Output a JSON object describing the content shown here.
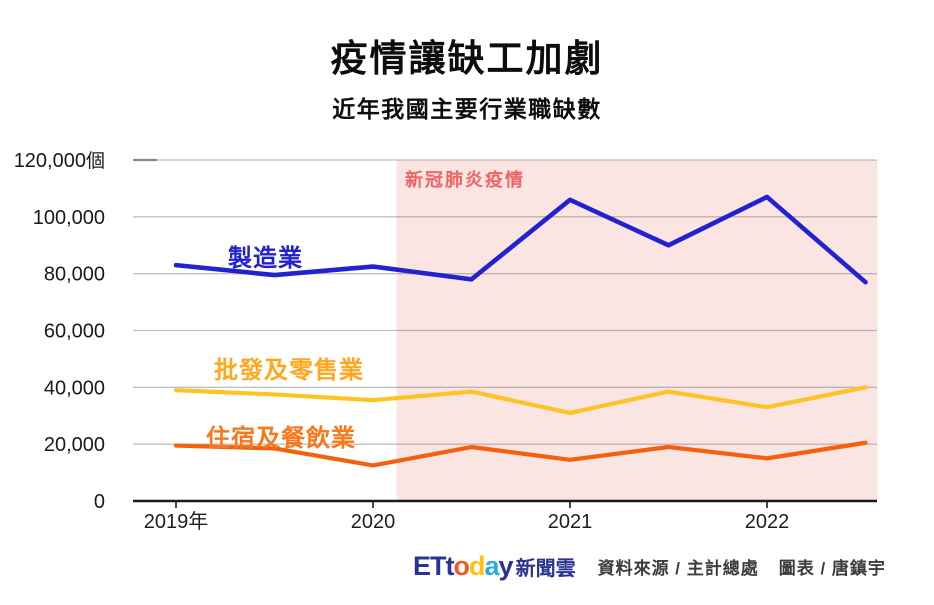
{
  "header": {
    "title": "疫情讓缺工加劇",
    "subtitle": "近年我國主要行業職缺數"
  },
  "chart_data": {
    "type": "line",
    "title": "疫情讓缺工加劇",
    "subtitle": "近年我國主要行業職缺數",
    "unit": "個",
    "x": [
      2019,
      2019.5,
      2020,
      2020.5,
      2021,
      2021.5,
      2022,
      2022.5
    ],
    "x_tick_values": [
      2019,
      2020,
      2021,
      2022
    ],
    "x_tick_labels": [
      "2019年",
      "2020",
      "2021",
      "2022"
    ],
    "y_tick_values": [
      0,
      20000,
      40000,
      60000,
      80000,
      100000,
      120000
    ],
    "y_tick_labels": [
      "0",
      "20,000",
      "40,000",
      "60,000",
      "80,000",
      "100,000",
      "120,000"
    ],
    "ylim": [
      0,
      120000
    ],
    "grid": "horizontal",
    "legend": "inline-labels",
    "series": [
      {
        "name": "製造業",
        "color": "#2222CF",
        "label_color": "#2222CF",
        "values": [
          83000,
          79500,
          82500,
          78000,
          106000,
          90000,
          107000,
          77000
        ]
      },
      {
        "name": "批發及零售業",
        "color": "#FFC326",
        "label_color": "#FFA81F",
        "values": [
          39000,
          37500,
          35500,
          38500,
          31000,
          38500,
          33000,
          40000
        ]
      },
      {
        "name": "住宿及餐飲業",
        "color": "#F4600D",
        "label_color": "#F8791C",
        "values": [
          19500,
          18500,
          12500,
          19000,
          14500,
          19000,
          15000,
          20500
        ]
      }
    ],
    "annotation_region": {
      "label": "新冠肺炎疫情",
      "label_color": "#F26363",
      "fill": "#FBE5E3",
      "x_start": 2020.12,
      "x_end": 2022.56
    }
  },
  "footer": {
    "logo": {
      "letters": [
        {
          "ch": "E",
          "color": "#2B3390"
        },
        {
          "ch": "T",
          "color": "#2B3390"
        },
        {
          "ch": "t",
          "color": "#2B3390"
        },
        {
          "ch": "o",
          "color": "#F15A24"
        },
        {
          "ch": "d",
          "color": "#FFC20E"
        },
        {
          "ch": "a",
          "color": "#29ABE2"
        },
        {
          "ch": "y",
          "color": "#2B3390"
        }
      ],
      "suffix": "新聞雲",
      "suffix_color": "#2B3390"
    },
    "source": "資料來源 / 主計總處",
    "credit": "圖表 / 唐鎮宇"
  }
}
